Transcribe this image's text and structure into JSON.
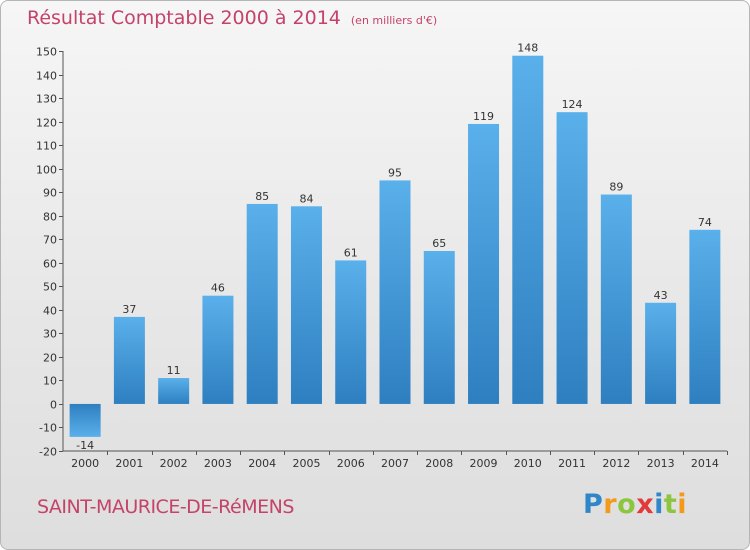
{
  "title": "Résultat Comptable 2000 à 2014",
  "unit_label": "(en milliers d'€)",
  "commune": "SAINT-MAURICE-DE-RéMENS",
  "logo": {
    "letters": [
      "P",
      "r",
      "o",
      "x",
      "i",
      "t",
      "i"
    ],
    "colors": [
      "#2f86c8",
      "#f29a1b",
      "#8cc63f",
      "#e23a3a",
      "#2f86c8",
      "#8cc63f",
      "#f29a1b"
    ]
  },
  "colors": {
    "bar": "#3d96d8",
    "title": "#c4436a"
  },
  "chart_data": {
    "type": "bar",
    "title": "Résultat Comptable 2000 à 2014",
    "xlabel": "",
    "ylabel": "",
    "categories": [
      "2000",
      "2001",
      "2002",
      "2003",
      "2004",
      "2005",
      "2006",
      "2007",
      "2008",
      "2009",
      "2010",
      "2011",
      "2012",
      "2013",
      "2014"
    ],
    "values": [
      -14,
      37,
      11,
      46,
      85,
      84,
      61,
      95,
      65,
      119,
      148,
      124,
      89,
      43,
      74
    ],
    "ylim": [
      -20,
      150
    ],
    "yticks": [
      -20,
      -10,
      0,
      10,
      20,
      30,
      40,
      50,
      60,
      70,
      80,
      90,
      100,
      110,
      120,
      130,
      140,
      150
    ],
    "grid": false,
    "legend": "none"
  }
}
